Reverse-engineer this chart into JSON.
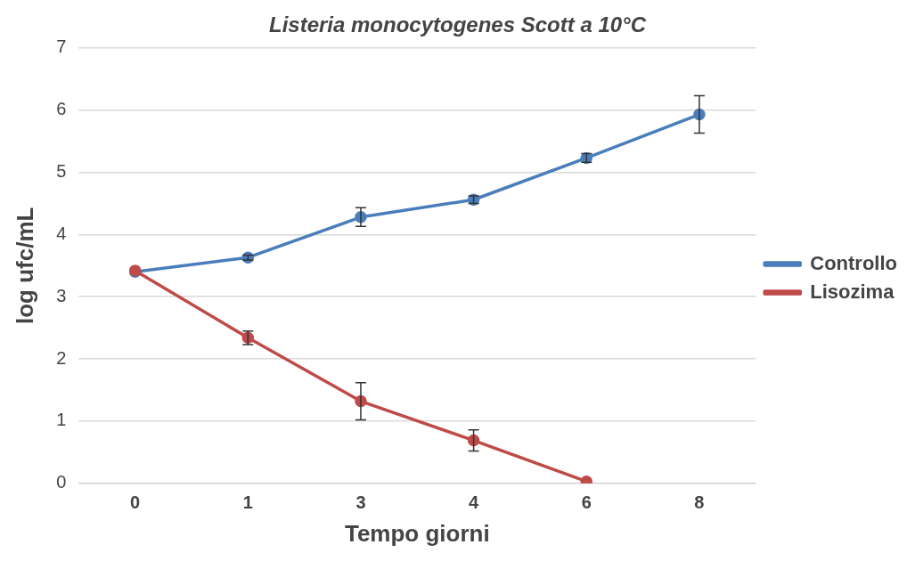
{
  "chart_data": {
    "type": "line",
    "title": "Listeria monocytogenes Scott a 10°C",
    "xlabel": "Tempo giorni",
    "ylabel": "log ufc/mL",
    "categories": [
      "0",
      "1",
      "3",
      "4",
      "6",
      "8"
    ],
    "series": [
      {
        "name": "Controllo",
        "color": "#4a7ebb",
        "values": [
          3.4,
          3.63,
          4.28,
          4.56,
          5.23,
          5.93
        ],
        "errors": [
          null,
          0.04,
          0.15,
          0.06,
          0.07,
          0.3
        ]
      },
      {
        "name": "Lisozima",
        "color": "#be4b48",
        "values": [
          3.42,
          2.34,
          1.32,
          0.69,
          0.03,
          null
        ],
        "errors": [
          null,
          0.11,
          0.3,
          0.17,
          null,
          null
        ]
      }
    ],
    "ylim": [
      0,
      7
    ],
    "yticks": [
      0,
      1,
      2,
      3,
      4,
      5,
      6,
      7
    ],
    "grid": "y",
    "legend": "right",
    "marker": "circle",
    "line_style": "solid"
  }
}
